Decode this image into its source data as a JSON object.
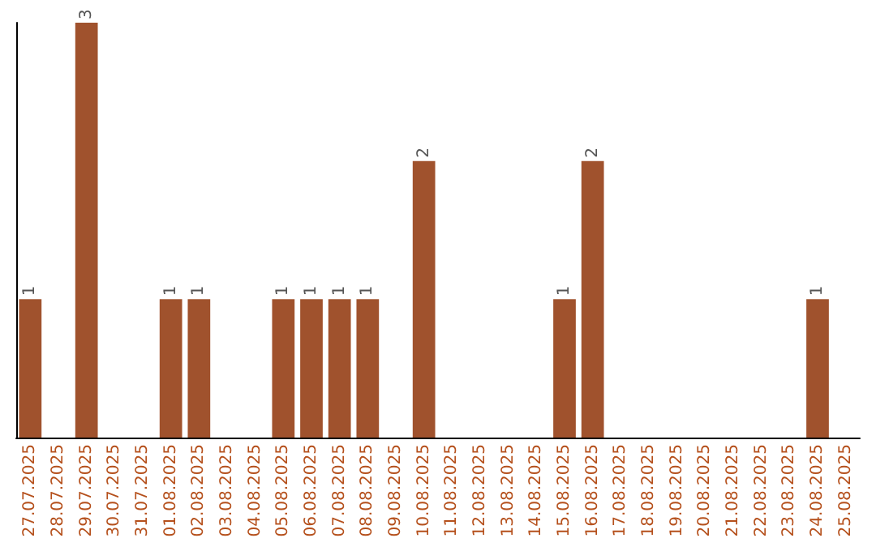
{
  "chart_data": {
    "type": "bar",
    "categories": [
      "27.07.2025",
      "28.07.2025",
      "29.07.2025",
      "30.07.2025",
      "31.07.2025",
      "01.08.2025",
      "02.08.2025",
      "03.08.2025",
      "04.08.2025",
      "05.08.2025",
      "06.08.2025",
      "07.08.2025",
      "08.08.2025",
      "09.08.2025",
      "10.08.2025",
      "11.08.2025",
      "12.08.2025",
      "13.08.2025",
      "14.08.2025",
      "15.08.2025",
      "16.08.2025",
      "17.08.2025",
      "18.08.2025",
      "19.08.2025",
      "20.08.2025",
      "21.08.2025",
      "22.08.2025",
      "23.08.2025",
      "24.08.2025",
      "25.08.2025"
    ],
    "values": [
      1,
      0,
      3,
      0,
      0,
      1,
      1,
      0,
      0,
      1,
      1,
      1,
      1,
      0,
      2,
      0,
      0,
      0,
      0,
      1,
      2,
      0,
      0,
      0,
      0,
      0,
      0,
      0,
      1,
      0
    ],
    "value_labels": [
      "1",
      null,
      "3",
      null,
      null,
      "1",
      "1",
      null,
      null,
      "1",
      "1",
      "1",
      "1",
      null,
      "2",
      null,
      null,
      null,
      null,
      "1",
      "2",
      null,
      null,
      null,
      null,
      null,
      null,
      null,
      "1",
      null
    ],
    "color": "#a0522d",
    "tick_labels": "x"
  }
}
